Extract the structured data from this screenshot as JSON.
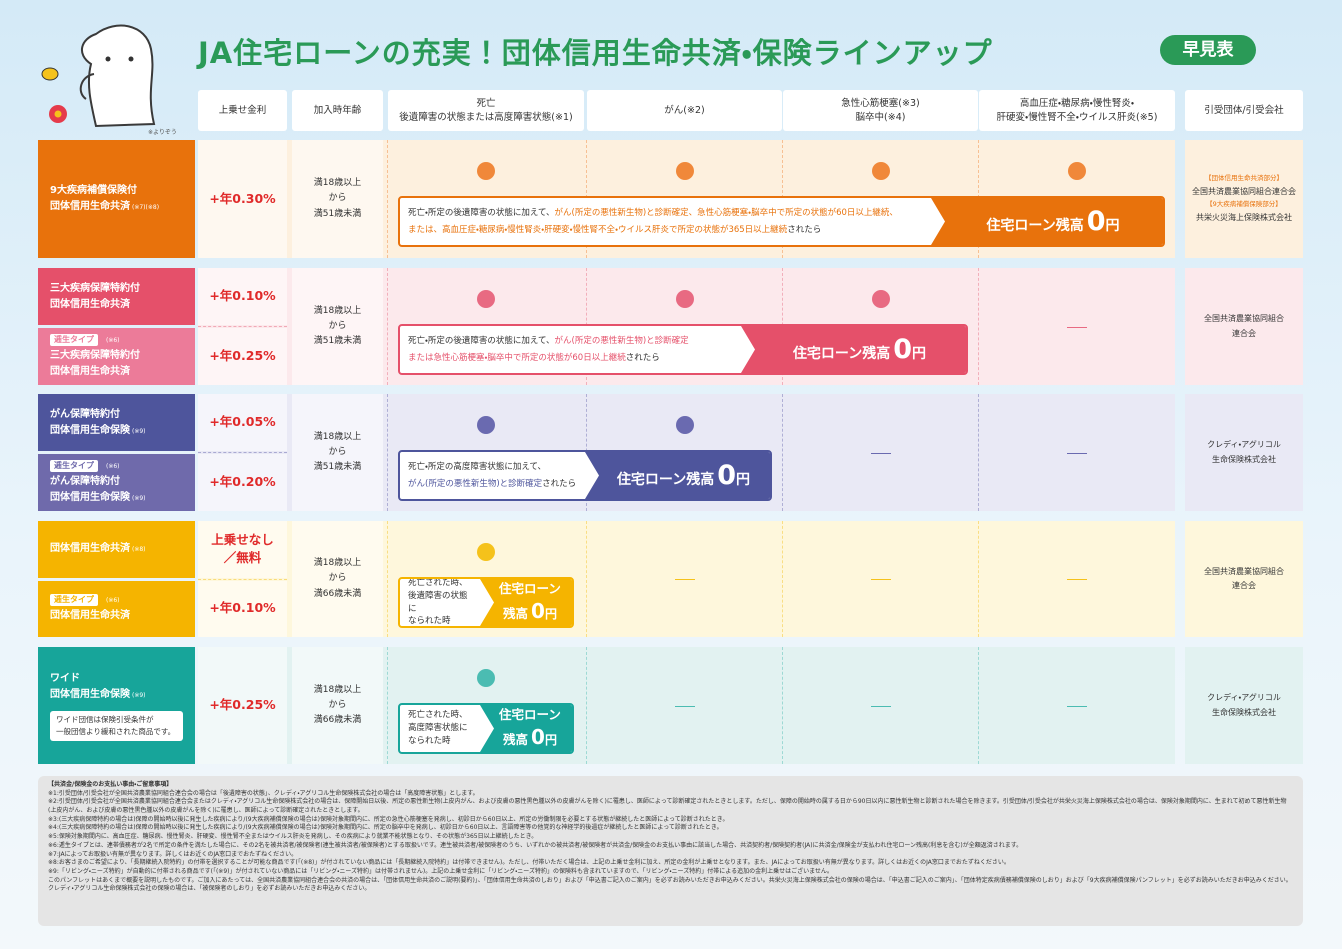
{
  "header": {
    "title": "JA住宅ローンの充実！団体信用生命共済・保険ラインアップ",
    "badge": "早見表",
    "mascot_note": "※よりぞう"
  },
  "columns": [
    "上乗せ金利",
    "加入時年齢",
    "死亡\n後遺障害の状態または高度障害状態(※1)",
    "がん(※2)",
    "急性心筋梗塞(※3)\n脳卒中(※4)",
    "高血圧症・糖尿病・慢性腎炎・\n肝硬変・慢性腎不全・ウイルス肝炎(※5)",
    "引受団体/引受会社"
  ],
  "groups": [
    {
      "color": "#e8720c",
      "bg": "#fdf0de",
      "dot": "#f0883a",
      "rows": [
        {
          "color": "#e8720c",
          "name": "9大疾病補償保険付\n団体信用生命共済",
          "note": "(※7)(※8)",
          "rate": "+年0.30%"
        }
      ],
      "age": "満18歳以上\nから\n満51歳未満",
      "coverage": [
        true,
        true,
        true,
        true
      ],
      "banner": {
        "text": [
          [
            {
              "text": "死亡・所定の後遺障害の状態に加えて、"
            },
            {
              "text": "がん(所定の悪性新生物)と診断確定、急性心筋梗塞・脳卒中で所定の状態が60日以上継続、",
              "em": true
            }
          ],
          [
            {
              "text": "または、高血圧症・糖尿病・慢性腎炎・肝硬変・慢性腎不全・ウイルス肝炎で所定の状態が365日以上継続",
              "em": true
            },
            {
              "text": "されたら"
            }
          ]
        ],
        "label": "住宅ローン残高",
        "zero": "0",
        "unit": "円"
      },
      "company": [
        {
          "text": "【団体信用生命共済部分】",
          "em": true
        },
        {
          "text": "全国共済農業協同組合連合会"
        },
        {
          "text": "【9大疾病補償保険部分】",
          "em": true
        },
        {
          "text": "共栄火災海上保険株式会社"
        }
      ]
    },
    {
      "color": "#e5506a",
      "bg": "#fce9ec",
      "dot": "#e86a82",
      "rows": [
        {
          "color": "#e5506a",
          "name": "三大疾病保障特約付\n団体信用生命共済",
          "rate": "+年0.10%"
        },
        {
          "color": "#ec7b99",
          "tag": "逓生タイプ",
          "tag_note": "(※6)",
          "name": "三大疾病保障特約付\n団体信用生命共済",
          "rate": "+年0.25%"
        }
      ],
      "age": "満18歳以上\nから\n満51歳未満",
      "coverage": [
        true,
        true,
        true,
        false
      ],
      "banner": {
        "text": [
          [
            {
              "text": "死亡・所定の後遺障害の状態に加えて、"
            },
            {
              "text": "がん(所定の悪性新生物)と診断確定",
              "em": true
            }
          ],
          [
            {
              "text": "または急性心筋梗塞・脳卒中で所定の状態が60日以上継続",
              "em": true
            },
            {
              "text": "されたら"
            }
          ]
        ],
        "label": "住宅ローン残高",
        "zero": "0",
        "unit": "円"
      },
      "company": [
        {
          "text": "全国共済農業協同組合\n連合会"
        }
      ]
    },
    {
      "color": "#4e559c",
      "bg": "#e9e9f5",
      "dot": "#6a6ab0",
      "rows": [
        {
          "color": "#4e559c",
          "name": "がん保障特約付\n団体信用生命保険",
          "note": "(※9)",
          "rate": "+年0.05%"
        },
        {
          "color": "#6f6aab",
          "tag": "逓生タイプ",
          "tag_note": "(※6)",
          "name": "がん保障特約付\n団体信用生命保険",
          "note": "(※9)",
          "rate": "+年0.20%"
        }
      ],
      "age": "満18歳以上\nから\n満51歳未満",
      "coverage": [
        true,
        true,
        false,
        false
      ],
      "banner": {
        "text": [
          [
            {
              "text": "死亡・所定の高度障害状態に加えて、"
            }
          ],
          [
            {
              "text": "がん(所定の悪性新生物)と診断確定",
              "em": true
            },
            {
              "text": "されたら"
            }
          ]
        ],
        "label": "住宅ローン残高",
        "zero": "0",
        "unit": "円"
      },
      "company": [
        {
          "text": "クレディ・アグリコル\n生命保険株式会社"
        }
      ]
    },
    {
      "color": "#f5b400",
      "bg": "#fef7dc",
      "dot": "#f5c21b",
      "rows": [
        {
          "color": "#f5b400",
          "name": "団体信用生命共済",
          "note": "(※8)",
          "rate": "上乗せなし\n／無料"
        },
        {
          "color": "#f5b400",
          "tag": "逓生タイプ",
          "tag_note": "(※6)",
          "name": "団体信用生命共済",
          "rate": "+年0.10%"
        }
      ],
      "age": "満18歳以上\nから\n満66歳未満",
      "coverage": [
        true,
        false,
        false,
        false
      ],
      "banner": {
        "text": [
          [
            {
              "text": "死亡された時、\n後遺障害の状態に\nなられた時"
            }
          ]
        ],
        "label": "住宅ローン\n残高",
        "zero": "0",
        "unit": "円"
      },
      "company": [
        {
          "text": "全国共済農業協同組合\n連合会"
        }
      ]
    },
    {
      "color": "#17a59a",
      "bg": "#e2f2f1",
      "dot": "#4bbcb2",
      "rows": [
        {
          "color": "#17a59a",
          "name": "ワイド\n団体信用生命保険",
          "note": "(※9)",
          "extra": "ワイド団信は保険引受条件が\n一般団信より緩和された商品です。",
          "rate": "+年0.25%"
        }
      ],
      "age": "満18歳以上\nから\n満66歳未満",
      "coverage": [
        true,
        false,
        false,
        false
      ],
      "banner": {
        "text": [
          [
            {
              "text": "死亡された時、\n高度障害状態に\nなられた時"
            }
          ]
        ],
        "label": "住宅ローン\n残高",
        "zero": "0",
        "unit": "円"
      },
      "company": [
        {
          "text": "クレディ・アグリコル\n生命保険株式会社"
        }
      ]
    }
  ],
  "notes": {
    "title": "【共済金/保険金のお支払い事由・ご留意事項】",
    "lines": [
      "※1:引受団体/引受会社が全国共済農業協同組合連合会の場合は「後遺障害の状態」、クレディ・アグリコル生命保険株式会社の場合は「高度障害状態」とします。",
      "※2:引受団体/引受会社が全国共済農業協同組合連合会またはクレディ・アグリコル生命保険株式会社の場合は、保障開始日以後、所定の悪性新生物(上皮内がん、および皮膚の悪性黒色腫以外の皮膚がんを除く)に罹患し、医師によって診断確定されたときとします。ただし、保障の開始時の属する日から90日以内に悪性新生物と診断された場合を除きます。引受団体/引受会社が共栄火災海上保険株式会社の場合は、保険対象期間内に、生まれて初めて悪性新生物(上皮内がん、および皮膚の悪性黒色腫以外の皮膚がんを除く)に罹患し、医師によって診断確定されたときとします。",
      "※3:(三大疾病保障特約の場合は)保障の開始時以後に発生した疾病により/(9大疾病補償保険の場合は)保険対象期間内に、所定の急性心筋梗塞を発病し、初診日から60日以上、所定の労働制限を必要とする状態が継続したと医師によって診断されたとき。",
      "※4:(三大疾病保障特約の場合は)保障の開始時以後に発生した疾病により/(9大疾病補償保険の場合は)保険対象期間内に、所定の脳卒中を発病し、初診日から60日以上、言語障害等の他覚的な神経学的後遺症が継続したと医師によって診断されたとき。",
      "※5:保険対象期間内に、高血圧症、糖尿病、慢性腎炎、肝硬変、慢性腎不全またはウイルス肝炎を発病し、その疾病により就業不能状態となり、その状態が365日以上継続したとき。",
      "※6:逓生タイプとは、連帯債務者が2名で所定の条件を満たした場合に、その2名を被共済者/被保険者(連生被共済者/被保険者)とする取扱いです。連生被共済者/被保険者のうち、いずれかの被共済者/被保険者が共済金/保険金のお支払い事由に該当した場合、共済契約者/保険契約者(JA)に共済金/保険金が支払われ住宅ローン残高(利息を含む)が全額返済されます。",
      "※7:JAによってお取扱い有無が異なります。詳しくはお近くのJA窓口までおたずねください。",
      "※8:お客さまのご希望により、「長期継続入院特約」の付帯を選択することが可能な商品です(「(※8)」が付されていない商品には「長期継続入院特約」は付帯できません)。ただし、付帯いただく場合は、上記の上乗せ金利に加え、所定の金利が上乗せとなります。また、JAによってお取扱い有無が異なります。詳しくはお近くのJA窓口までおたずねください。",
      "※9:「リビング・ニーズ特約」が自動的に付帯される商品です(「(※9)」が付されていない商品には「リビング・ニーズ特約」は付帯されません)。上記の上乗せ金利に「リビング・ニーズ特約」の保険料も含まれていますので、「リビング・ニーズ特約」付帯による追加の金利上乗せはございません。",
      "このパンフレットはあくまで概要を説明したものです。ご加入にあたっては、全国共済農業協同組合連合会の共済の場合は、「団体信用生命共済のご説明(要約)」、「団体信用生命共済のしおり」および「申込書ご記入のご案内」を必ずお読みいただきお申込みください。共栄火災海上保険株式会社の保険の場合は、「申込書ご記入のご案内」、「団体特定疾病債務補償保険のしおり」および「9大疾病補償保険パンフレット」を必ずお読みいただきお申込みください。クレディ・アグリコル生命保険株式会社の保険の場合は、「被保険者のしおり」を必ずお読みいただきお申込みください。"
    ]
  }
}
